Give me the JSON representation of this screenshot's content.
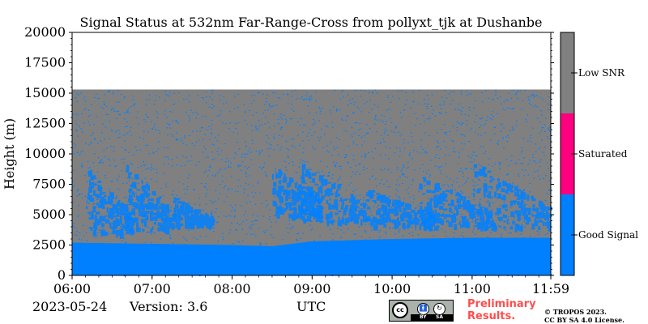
{
  "chart_data": {
    "type": "heatmap",
    "title": "Signal Status at 532nm Far-Range-Cross from pollyxt_tjk at Dushanbe",
    "xlabel": "UTC",
    "ylabel": "Height (m)",
    "x_range": [
      "06:00",
      "11:59"
    ],
    "x_ticks": [
      "06:00",
      "07:00",
      "08:00",
      "09:00",
      "10:00",
      "11:00",
      "11:59"
    ],
    "ylim": [
      0,
      20000
    ],
    "y_ticks": [
      0,
      2500,
      5000,
      7500,
      10000,
      12500,
      15000,
      17500,
      20000
    ],
    "data_top_height": 15300,
    "colorbar": {
      "entries": [
        {
          "label": "Good Signal",
          "color": "#0080ff"
        },
        {
          "label": "Saturated",
          "color": "#ff0080"
        },
        {
          "label": "Low SNR",
          "color": "#808080"
        }
      ]
    },
    "surface_good_signal_height": [
      {
        "time": "06:00",
        "height": 2700
      },
      {
        "time": "07:00",
        "height": 2600
      },
      {
        "time": "08:00",
        "height": 2500
      },
      {
        "time": "08:30",
        "height": 2400
      },
      {
        "time": "09:00",
        "height": 2800
      },
      {
        "time": "10:00",
        "height": 3000
      },
      {
        "time": "11:00",
        "height": 3100
      },
      {
        "time": "11:59",
        "height": 3100
      }
    ],
    "good_signal_layers": [
      {
        "time_start": "06:10",
        "time_end": "06:45",
        "bottom": 3500,
        "top": 9000
      },
      {
        "time_start": "06:40",
        "time_end": "07:15",
        "bottom": 3800,
        "top": 9300
      },
      {
        "time_start": "07:15",
        "time_end": "07:45",
        "bottom": 4200,
        "top": 6500
      },
      {
        "time_start": "08:30",
        "time_end": "09:05",
        "bottom": 5000,
        "top": 9200
      },
      {
        "time_start": "08:50",
        "time_end": "09:40",
        "bottom": 4500,
        "top": 9600
      },
      {
        "time_start": "09:40",
        "time_end": "10:30",
        "bottom": 4200,
        "top": 7200
      },
      {
        "time_start": "10:20",
        "time_end": "11:15",
        "bottom": 4000,
        "top": 8500
      },
      {
        "time_start": "11:00",
        "time_end": "11:59",
        "bottom": 4000,
        "top": 9500
      }
    ]
  },
  "footer": {
    "date": "2023-05-24",
    "version": "Version: 3.6",
    "time_label": "UTC",
    "cc_by": "BY",
    "cc_sa": "SA",
    "preliminary_line1": "Preliminary",
    "preliminary_line2": "Results.",
    "copyright_line1": "© TROPOS 2023.",
    "copyright_line2": "CC BY SA 4.0 License."
  }
}
